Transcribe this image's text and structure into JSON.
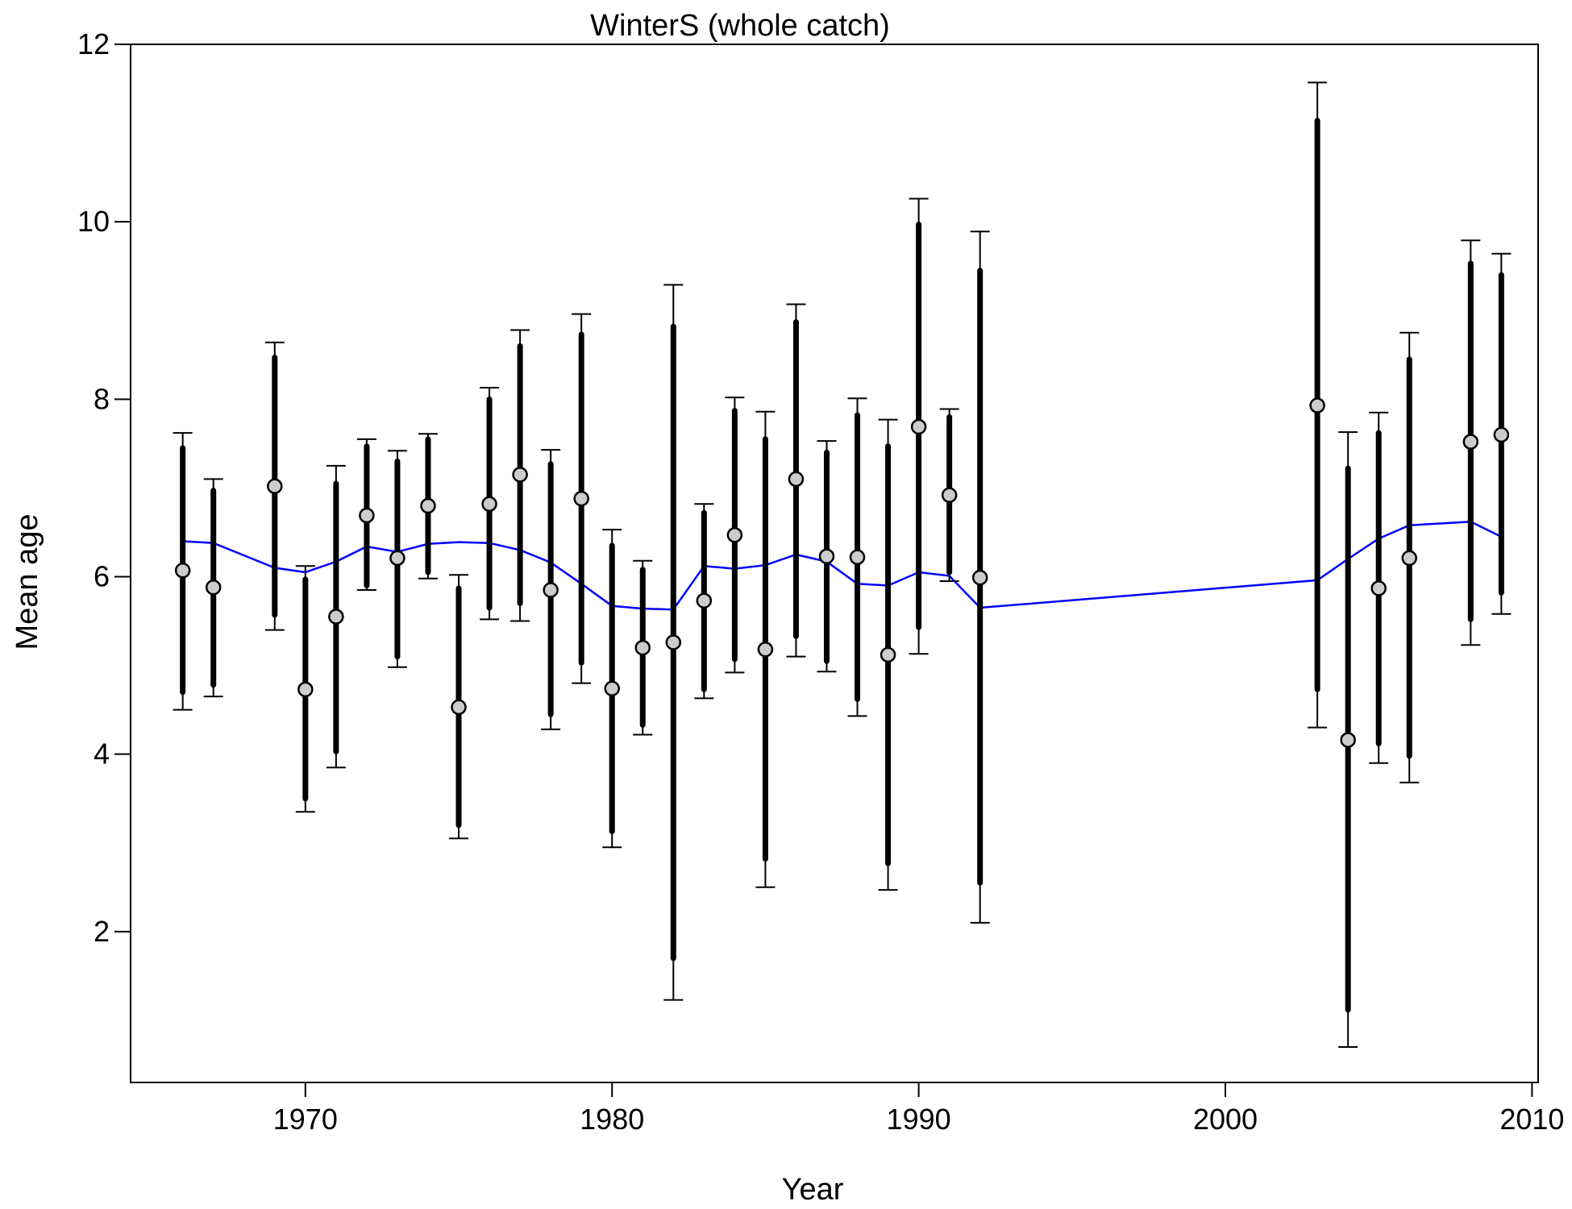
{
  "chart_data": {
    "type": "scatter",
    "title": "WinterS (whole catch)",
    "xlabel": "Year",
    "ylabel": "Mean age",
    "xlim": [
      1964.3,
      2010.2
    ],
    "ylim": [
      0.3,
      12.0
    ],
    "xticks": [
      1970,
      1980,
      1990,
      2000,
      2010
    ],
    "yticks": [
      2,
      4,
      6,
      8,
      10,
      12
    ],
    "grid": false,
    "legend": "none",
    "colors": {
      "points_fill": "#cccccc",
      "points_stroke": "#000000",
      "error_bars": "#000000",
      "smooth_line": "#0000ff"
    },
    "series": [
      {
        "values": [
          {
            "x": 1966,
            "y": 6.07,
            "inner": [
              4.7,
              7.45
            ],
            "outer": [
              4.5,
              7.62
            ]
          },
          {
            "x": 1967,
            "y": 5.88,
            "inner": [
              4.78,
              6.97
            ],
            "outer": [
              4.65,
              7.1
            ]
          },
          {
            "x": 1969,
            "y": 7.02,
            "inner": [
              5.57,
              8.47
            ],
            "outer": [
              5.4,
              8.64
            ]
          },
          {
            "x": 1970,
            "y": 4.73,
            "inner": [
              3.5,
              5.97
            ],
            "outer": [
              3.35,
              6.12
            ]
          },
          {
            "x": 1971,
            "y": 5.55,
            "inner": [
              4.03,
              7.05
            ],
            "outer": [
              3.85,
              7.25
            ]
          },
          {
            "x": 1972,
            "y": 6.69,
            "inner": [
              5.9,
              7.47
            ],
            "outer": [
              5.85,
              7.55
            ]
          },
          {
            "x": 1973,
            "y": 6.21,
            "inner": [
              5.1,
              7.3
            ],
            "outer": [
              4.98,
              7.42
            ]
          },
          {
            "x": 1974,
            "y": 6.8,
            "inner": [
              6.05,
              7.55
            ],
            "outer": [
              5.98,
              7.61
            ]
          },
          {
            "x": 1975,
            "y": 4.53,
            "inner": [
              3.2,
              5.87
            ],
            "outer": [
              3.05,
              6.02
            ]
          },
          {
            "x": 1976,
            "y": 6.82,
            "inner": [
              5.65,
              8.0
            ],
            "outer": [
              5.52,
              8.13
            ]
          },
          {
            "x": 1977,
            "y": 7.15,
            "inner": [
              5.7,
              8.6
            ],
            "outer": [
              5.5,
              8.78
            ]
          },
          {
            "x": 1978,
            "y": 5.85,
            "inner": [
              4.45,
              7.27
            ],
            "outer": [
              4.28,
              7.43
            ]
          },
          {
            "x": 1979,
            "y": 6.88,
            "inner": [
              5.03,
              8.73
            ],
            "outer": [
              4.8,
              8.96
            ]
          },
          {
            "x": 1980,
            "y": 4.74,
            "inner": [
              3.13,
              6.35
            ],
            "outer": [
              2.95,
              6.53
            ]
          },
          {
            "x": 1981,
            "y": 5.2,
            "inner": [
              4.33,
              6.08
            ],
            "outer": [
              4.22,
              6.18
            ]
          },
          {
            "x": 1982,
            "y": 5.26,
            "inner": [
              1.7,
              8.82
            ],
            "outer": [
              1.23,
              9.29
            ]
          },
          {
            "x": 1983,
            "y": 5.73,
            "inner": [
              4.73,
              6.72
            ],
            "outer": [
              4.63,
              6.82
            ]
          },
          {
            "x": 1984,
            "y": 6.47,
            "inner": [
              5.07,
              7.87
            ],
            "outer": [
              4.92,
              8.02
            ]
          },
          {
            "x": 1985,
            "y": 5.18,
            "inner": [
              2.82,
              7.55
            ],
            "outer": [
              2.5,
              7.86
            ]
          },
          {
            "x": 1986,
            "y": 7.1,
            "inner": [
              5.33,
              8.87
            ],
            "outer": [
              5.1,
              9.07
            ]
          },
          {
            "x": 1987,
            "y": 6.23,
            "inner": [
              5.05,
              7.4
            ],
            "outer": [
              4.93,
              7.53
            ]
          },
          {
            "x": 1988,
            "y": 6.22,
            "inner": [
              4.62,
              7.82
            ],
            "outer": [
              4.43,
              8.01
            ]
          },
          {
            "x": 1989,
            "y": 5.12,
            "inner": [
              2.77,
              7.47
            ],
            "outer": [
              2.47,
              7.77
            ]
          },
          {
            "x": 1990,
            "y": 7.69,
            "inner": [
              5.43,
              9.97
            ],
            "outer": [
              5.13,
              10.26
            ]
          },
          {
            "x": 1991,
            "y": 6.92,
            "inner": [
              6.05,
              7.8
            ],
            "outer": [
              5.95,
              7.89
            ]
          },
          {
            "x": 1992,
            "y": 5.99,
            "inner": [
              2.55,
              9.45
            ],
            "outer": [
              2.1,
              9.89
            ]
          },
          {
            "x": 2003,
            "y": 7.93,
            "inner": [
              4.73,
              11.14
            ],
            "outer": [
              4.3,
              11.57
            ]
          },
          {
            "x": 2004,
            "y": 4.16,
            "inner": [
              1.12,
              7.22
            ],
            "outer": [
              0.7,
              7.63
            ]
          },
          {
            "x": 2005,
            "y": 5.87,
            "inner": [
              4.12,
              7.62
            ],
            "outer": [
              3.9,
              7.85
            ]
          },
          {
            "x": 2006,
            "y": 6.21,
            "inner": [
              3.98,
              8.45
            ],
            "outer": [
              3.68,
              8.75
            ]
          },
          {
            "x": 2008,
            "y": 7.52,
            "inner": [
              5.52,
              9.53
            ],
            "outer": [
              5.23,
              9.79
            ]
          },
          {
            "x": 2009,
            "y": 7.6,
            "inner": [
              5.82,
              9.4
            ],
            "outer": [
              5.58,
              9.64
            ]
          }
        ]
      }
    ],
    "smooth_line": {
      "x": [
        1966,
        1967,
        1969,
        1970,
        1971,
        1972,
        1973,
        1974,
        1975,
        1976,
        1977,
        1978,
        1979,
        1980,
        1981,
        1982,
        1983,
        1984,
        1985,
        1986,
        1987,
        1988,
        1989,
        1990,
        1991,
        1992,
        2003,
        2004,
        2005,
        2006,
        2008,
        2009
      ],
      "y": [
        6.4,
        6.38,
        6.1,
        6.05,
        6.17,
        6.34,
        6.28,
        6.37,
        6.39,
        6.38,
        6.3,
        6.16,
        5.92,
        5.67,
        5.64,
        5.63,
        6.12,
        6.09,
        6.13,
        6.25,
        6.17,
        5.92,
        5.9,
        6.05,
        6.01,
        5.65,
        5.96,
        6.2,
        6.43,
        6.58,
        6.62,
        6.45
      ]
    }
  }
}
